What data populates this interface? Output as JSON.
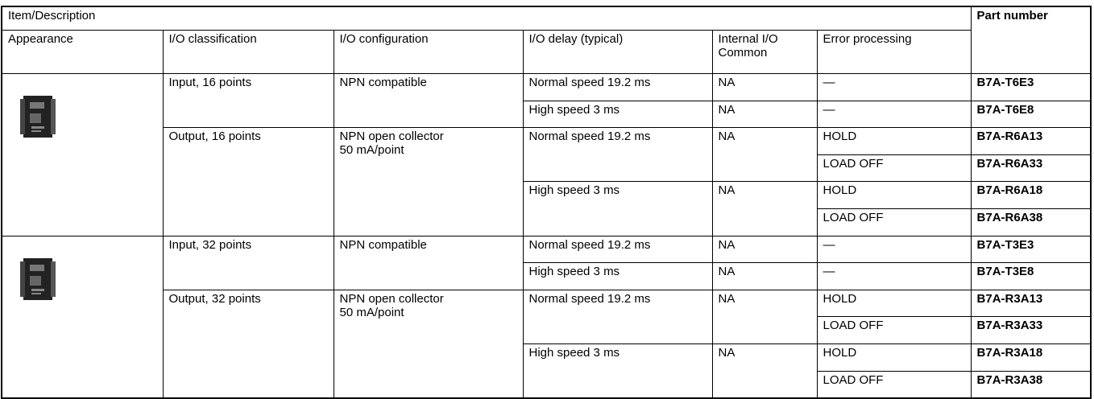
{
  "table": {
    "header": {
      "item": "Item/Description",
      "part_number": "Part number",
      "columns": [
        "Appearance",
        "I/O classification",
        "I/O configuration",
        "I/O delay (typical)",
        "Internal I/O\nCommon",
        "Error processing"
      ]
    },
    "products": [
      {
        "sections": [
          {
            "classification": "Input, 16 points",
            "configuration": "NPN compatible",
            "delays": [
              {
                "delay": "Normal speed 19.2 ms",
                "common": "NA",
                "variants": [
                  {
                    "error": "—",
                    "part": "B7A-T6E3"
                  }
                ]
              },
              {
                "delay": "High speed 3 ms",
                "common": "NA",
                "variants": [
                  {
                    "error": "—",
                    "part": "B7A-T6E8"
                  }
                ]
              }
            ]
          },
          {
            "classification": "Output, 16 points",
            "configuration": "NPN open collector\n50 mA/point",
            "delays": [
              {
                "delay": "Normal speed 19.2 ms",
                "common": "NA",
                "variants": [
                  {
                    "error": "HOLD",
                    "part": "B7A-R6A13"
                  },
                  {
                    "error": "LOAD OFF",
                    "part": "B7A-R6A33"
                  }
                ]
              },
              {
                "delay": "High speed 3 ms",
                "common": "NA",
                "variants": [
                  {
                    "error": "HOLD",
                    "part": "B7A-R6A18"
                  },
                  {
                    "error": "LOAD OFF",
                    "part": "B7A-R6A38"
                  }
                ]
              }
            ]
          }
        ]
      },
      {
        "sections": [
          {
            "classification": "Input, 32 points",
            "configuration": "NPN compatible",
            "delays": [
              {
                "delay": "Normal speed 19.2 ms",
                "common": "NA",
                "variants": [
                  {
                    "error": "—",
                    "part": "B7A-T3E3"
                  }
                ]
              },
              {
                "delay": "High speed 3 ms",
                "common": "NA",
                "variants": [
                  {
                    "error": "—",
                    "part": "B7A-T3E8"
                  }
                ]
              }
            ]
          },
          {
            "classification": "Output, 32 points",
            "configuration": "NPN open collector\n50 mA/point",
            "delays": [
              {
                "delay": "Normal speed 19.2 ms",
                "common": "NA",
                "variants": [
                  {
                    "error": "HOLD",
                    "part": "B7A-R3A13"
                  },
                  {
                    "error": "LOAD OFF",
                    "part": "B7A-R3A33"
                  }
                ]
              },
              {
                "delay": "High speed 3 ms",
                "common": "NA",
                "variants": [
                  {
                    "error": "HOLD",
                    "part": "B7A-R3A18"
                  },
                  {
                    "error": "LOAD OFF",
                    "part": "B7A-R3A38"
                  }
                ]
              }
            ]
          }
        ]
      }
    ]
  }
}
